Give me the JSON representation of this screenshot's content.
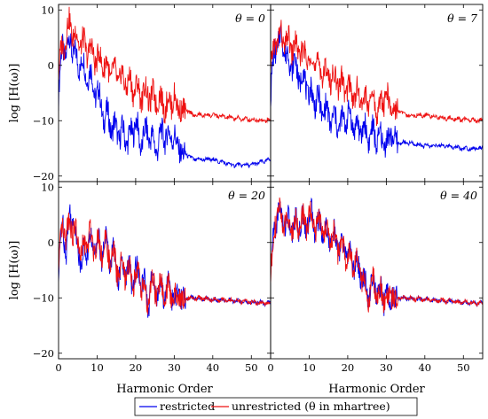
{
  "chart_data": {
    "type": "line",
    "layout": "2x2 grid, shared axes",
    "xlabel": "Harmonic Order",
    "ylabel": "log [H(ω)]",
    "xlim": [
      0,
      55
    ],
    "ylim": [
      -21,
      11
    ],
    "xticks": [
      0,
      10,
      20,
      30,
      40,
      50
    ],
    "yticks": [
      -20,
      -10,
      0,
      10
    ],
    "grid": false,
    "legend": {
      "placement": "bottom-center",
      "entries": [
        "restricted",
        "unrestricted (θ in mhartree)"
      ]
    },
    "colors": {
      "restricted": "#0000ee",
      "unrestricted": "#ee1111"
    },
    "panels": [
      {
        "title": "θ = 0",
        "series": [
          {
            "name": "restricted",
            "x": [
              0,
              1,
              2,
              3,
              4,
              5,
              6,
              7,
              8,
              9,
              10,
              11,
              12,
              13,
              14,
              15,
              16,
              17,
              18,
              19,
              20,
              21,
              22,
              23,
              24,
              25,
              26,
              27,
              28,
              29,
              30,
              31,
              32,
              33,
              35,
              40,
              45,
              50,
              55
            ],
            "y": [
              -6,
              4,
              2,
              5,
              2,
              0,
              1,
              -2,
              -1,
              -4,
              -5,
              -7,
              -10,
              -9,
              -12,
              -11,
              -13,
              -12,
              -14,
              -12,
              -10,
              -14,
              -13,
              -12,
              -13,
              -15,
              -14,
              -12,
              -13,
              -13,
              -12,
              -15,
              -16,
              -16,
              -17,
              -17,
              -18,
              -18,
              -17
            ]
          },
          {
            "name": "unrestricted",
            "x": [
              0,
              1,
              2,
              3,
              4,
              5,
              6,
              7,
              8,
              9,
              10,
              11,
              12,
              13,
              14,
              15,
              16,
              17,
              18,
              19,
              20,
              21,
              22,
              23,
              24,
              25,
              26,
              27,
              28,
              29,
              30,
              31,
              32,
              33,
              35,
              40,
              45,
              50,
              55
            ],
            "y": [
              -2,
              4,
              5,
              8,
              5,
              5,
              4,
              3,
              3,
              2,
              1,
              1,
              0,
              -1,
              -1,
              -2,
              -2,
              -3,
              -3,
              -4,
              -4,
              -5,
              -5,
              -5,
              -6,
              -6,
              -6,
              -7,
              -7,
              -7,
              -5,
              -8,
              -8,
              -8,
              -9,
              -9,
              -9.5,
              -9.8,
              -10
            ]
          }
        ]
      },
      {
        "title": "θ = 7",
        "series": [
          {
            "name": "restricted",
            "x": [
              0,
              1,
              2,
              3,
              4,
              5,
              6,
              7,
              8,
              9,
              10,
              11,
              12,
              13,
              14,
              15,
              16,
              17,
              18,
              19,
              20,
              21,
              22,
              23,
              24,
              25,
              26,
              27,
              28,
              29,
              30,
              31,
              32,
              33,
              35,
              40,
              45,
              50,
              55
            ],
            "y": [
              -6,
              3,
              4,
              5,
              2,
              0,
              1,
              -2,
              -2,
              -3,
              -5,
              -6,
              -6,
              -8,
              -8,
              -9,
              -10,
              -10,
              -11,
              -10,
              -9,
              -10,
              -11,
              -12,
              -11,
              -13,
              -12,
              -13,
              -13,
              -14,
              -13,
              -13,
              -13,
              -14,
              -14,
              -14.5,
              -14.5,
              -15,
              -15
            ]
          },
          {
            "name": "unrestricted",
            "x": [
              0,
              1,
              2,
              3,
              4,
              5,
              6,
              7,
              8,
              9,
              10,
              11,
              12,
              13,
              14,
              15,
              16,
              17,
              18,
              19,
              20,
              21,
              22,
              23,
              24,
              25,
              26,
              27,
              28,
              29,
              30,
              31,
              32,
              33,
              35,
              40,
              45,
              50,
              55
            ],
            "y": [
              -2,
              4,
              5,
              5,
              4,
              4,
              3,
              3,
              2,
              2,
              1,
              1,
              0,
              -1,
              -1,
              -2,
              -2,
              -3,
              -3,
              -4,
              -4,
              -5,
              -5,
              -6,
              -6,
              -7,
              -6,
              -7,
              -8,
              -7,
              -4,
              -8,
              -8,
              -8,
              -9,
              -9,
              -9.5,
              -9.8,
              -10
            ]
          }
        ]
      },
      {
        "title": "θ = 20",
        "series": [
          {
            "name": "restricted",
            "x": [
              0,
              1,
              2,
              3,
              4,
              5,
              6,
              7,
              8,
              9,
              10,
              11,
              12,
              13,
              14,
              15,
              16,
              17,
              18,
              19,
              20,
              21,
              22,
              23,
              24,
              25,
              26,
              27,
              28,
              29,
              30,
              31,
              32,
              33,
              35,
              40,
              45,
              50,
              55
            ],
            "y": [
              -7,
              5,
              -2,
              6,
              3,
              -1,
              -3,
              -2,
              1,
              -2,
              2,
              -3,
              1,
              -3,
              -1,
              -5,
              -5,
              -6,
              -4,
              -8,
              -4,
              -8,
              -6,
              -12,
              -7,
              -8,
              -9,
              -9,
              -8,
              -9,
              -9,
              -10,
              -10,
              -10,
              -10,
              -10.3,
              -10.5,
              -10.8,
              -11
            ]
          },
          {
            "name": "unrestricted",
            "x": [
              0,
              1,
              2,
              3,
              4,
              5,
              6,
              7,
              8,
              9,
              10,
              11,
              12,
              13,
              14,
              15,
              16,
              17,
              18,
              19,
              20,
              21,
              22,
              23,
              24,
              25,
              26,
              27,
              28,
              29,
              30,
              31,
              32,
              33,
              35,
              40,
              45,
              50,
              55
            ],
            "y": [
              -6,
              3,
              1,
              4,
              2,
              0,
              -2,
              -1,
              2,
              -1,
              1,
              -2,
              0,
              -3,
              -2,
              -5,
              -4,
              -6,
              -5,
              -7,
              -5,
              -7,
              -7,
              -12,
              -7,
              -9,
              -8,
              -9,
              -9,
              -9,
              -9,
              -10,
              -10,
              -10,
              -10,
              -10.3,
              -10.5,
              -10.8,
              -11
            ]
          }
        ]
      },
      {
        "title": "θ = 40",
        "series": [
          {
            "name": "restricted",
            "x": [
              0,
              1,
              2,
              3,
              4,
              5,
              6,
              7,
              8,
              9,
              10,
              11,
              12,
              13,
              14,
              15,
              16,
              17,
              18,
              19,
              20,
              21,
              22,
              23,
              24,
              25,
              26,
              27,
              28,
              29,
              30,
              31,
              32,
              33,
              35,
              40,
              45,
              50,
              55
            ],
            "y": [
              -7,
              3,
              6,
              4,
              4,
              3,
              3,
              3,
              4,
              3,
              5,
              4,
              3,
              3,
              2,
              1,
              1,
              0,
              -1,
              -1,
              -2,
              -3,
              -4,
              -5,
              -6,
              -10,
              -7,
              -8,
              -9,
              -10,
              -9,
              -10,
              -10,
              -10,
              -10,
              -10.3,
              -10.5,
              -10.8,
              -11
            ]
          },
          {
            "name": "unrestricted",
            "x": [
              0,
              1,
              2,
              3,
              4,
              5,
              6,
              7,
              8,
              9,
              10,
              11,
              12,
              13,
              14,
              15,
              16,
              17,
              18,
              19,
              20,
              21,
              22,
              23,
              24,
              25,
              26,
              27,
              28,
              29,
              30,
              31,
              32,
              33,
              35,
              40,
              45,
              50,
              55
            ],
            "y": [
              -7,
              3,
              6,
              4,
              4,
              3,
              3,
              3,
              4,
              3,
              5,
              4,
              3,
              3,
              2,
              1,
              1,
              0,
              -1,
              -1,
              -2,
              -3,
              -4,
              -5,
              -6,
              -11,
              -7,
              -8,
              -9,
              -10,
              -9,
              -10,
              -10,
              -10,
              -10,
              -10.3,
              -10.5,
              -10.8,
              -11
            ]
          }
        ]
      }
    ]
  }
}
